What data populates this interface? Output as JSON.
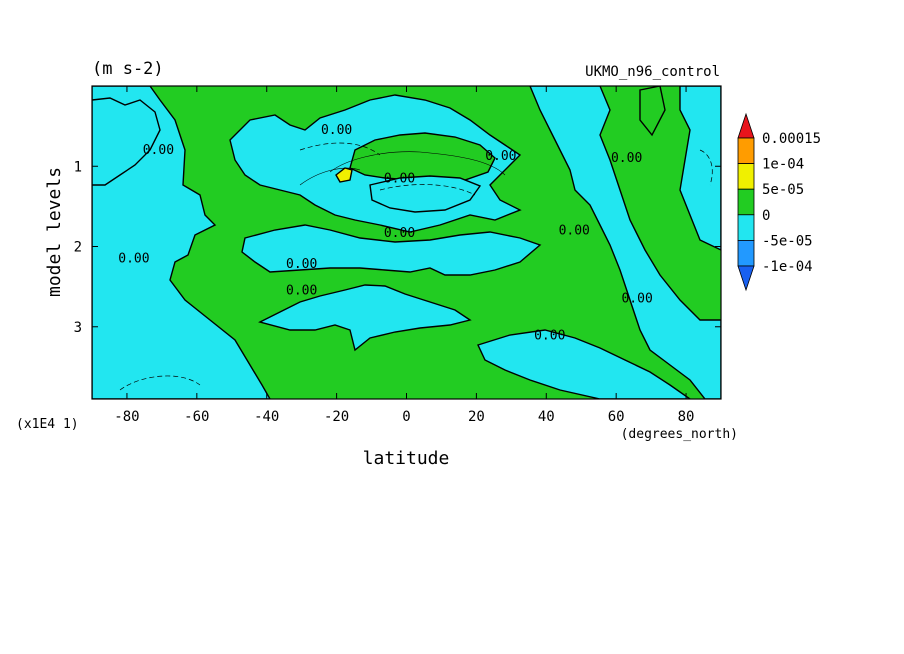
{
  "chart_data": {
    "type": "heatmap",
    "subtype": "filled-contour",
    "units_label": "(m s-2)",
    "model_label": "UKMO_n96_control",
    "xlabel": "latitude",
    "xunits": "(degrees_north)",
    "ylabel": "model levels",
    "yscale_label": "(x1E4 1)",
    "xlim": [
      -90,
      90
    ],
    "ylim": [
      3.9,
      0
    ],
    "xticks": [
      -80,
      -60,
      -40,
      -20,
      0,
      20,
      40,
      60,
      80
    ],
    "xtick_labels": [
      "-80",
      "-60",
      "-40",
      "-20",
      "0",
      "20",
      "40",
      "60",
      "80"
    ],
    "yticks": [
      1,
      2,
      3
    ],
    "ytick_labels": [
      "1",
      "2",
      "3"
    ],
    "contour_labels": [
      {
        "text": "0.00",
        "x": -20,
        "y": 0.6
      },
      {
        "text": "0.00",
        "x": -2,
        "y": 1.2
      },
      {
        "text": "0.00",
        "x": -2,
        "y": 1.88
      },
      {
        "text": "0.00",
        "x": -30,
        "y": 2.27
      },
      {
        "text": "0.00",
        "x": -30,
        "y": 2.6
      },
      {
        "text": "0.00",
        "x": 41,
        "y": 3.16
      },
      {
        "text": "0.00",
        "x": -71,
        "y": 0.85
      },
      {
        "text": "0.00",
        "x": 27,
        "y": 0.92
      },
      {
        "text": "0.00",
        "x": 48,
        "y": 1.85
      },
      {
        "text": "0.00",
        "x": -78,
        "y": 2.2
      },
      {
        "text": "0.00",
        "x": 63,
        "y": 0.95
      },
      {
        "text": "0.00",
        "x": 66,
        "y": 2.7
      }
    ],
    "legend": {
      "placement": "right",
      "labels": [
        "0.00015",
        "1e-04",
        "5e-05",
        "0",
        "-5e-05",
        "-1e-04"
      ],
      "colors": [
        "#e8141c",
        "#ff9c00",
        "#f0f000",
        "#22cc22",
        "#22e6f0",
        "#2299ff",
        "#1860f0"
      ]
    },
    "levels": [
      -0.0001,
      -5e-05,
      0,
      5e-05,
      0.0001,
      0.00015
    ],
    "background_sign": "positive (0 to 5e-05) over most of domain; negative (-5e-05 to 0) regions near surface, upper polar, and mid-level tropics"
  }
}
